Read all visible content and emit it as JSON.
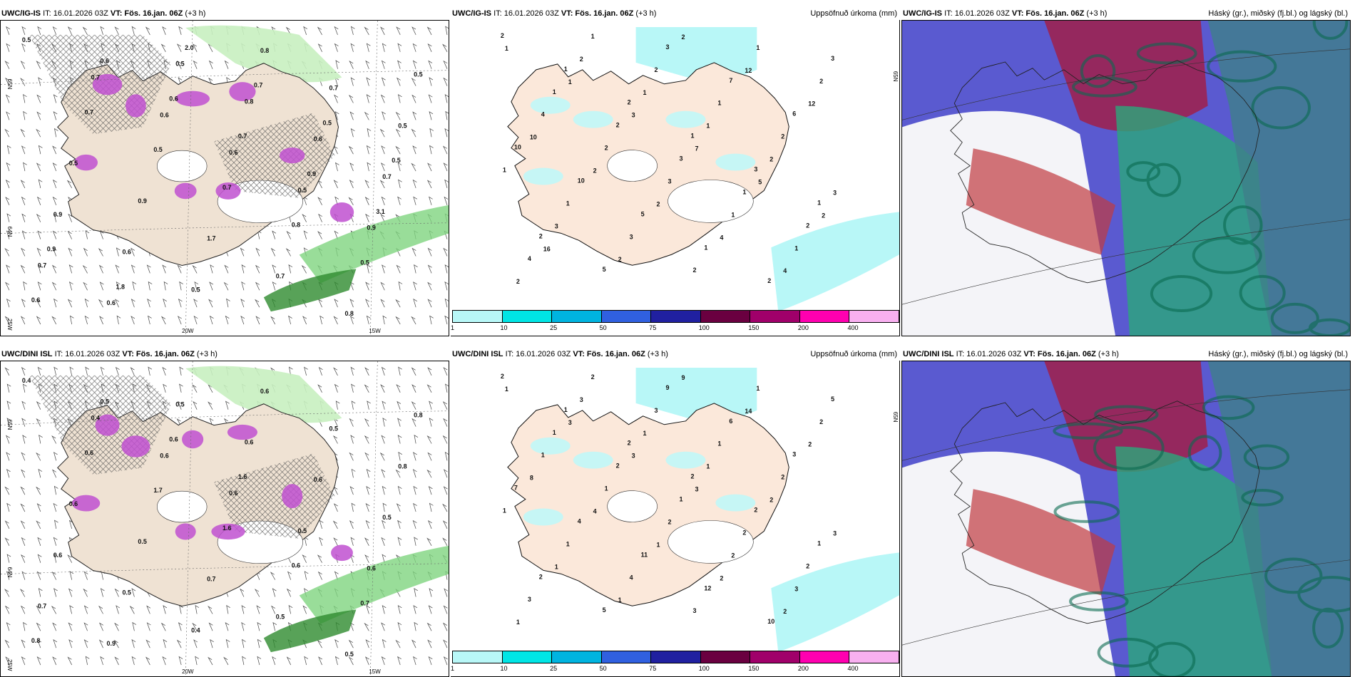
{
  "panels": [
    {
      "model": "UWC/IG-IS",
      "it": "IT: 16.01.2026 03Z",
      "vt": "VT: Fös. 16.jan. 06Z",
      "step": "(+3 h)",
      "right": "",
      "lon_labels": [
        "20W",
        "15W"
      ],
      "lat_labels": [
        "65N",
        "64N",
        "25W"
      ],
      "right_lat": "",
      "values": [
        "0.5",
        "0.7",
        "0.6",
        "0.6",
        "0.5",
        "0.9",
        "0.7",
        "0.6",
        "0.5",
        "0.8",
        "0.6",
        "0.7",
        "0.9",
        "0.6",
        "0.5",
        "0.8",
        "0.7",
        "0.5",
        "0.5",
        "0.9",
        "1.7",
        "0.7",
        "0.8",
        "0.5",
        "0.7",
        "0.5",
        "0.7",
        "0.8",
        "0.5",
        "0.6",
        "0.6",
        "0.6",
        "0.7",
        "0.9",
        "3.1",
        "0.9",
        "1.8",
        "2.0",
        "0.7",
        "0.5",
        "0.5"
      ]
    },
    {
      "model": "UWC/IG-IS",
      "it": "IT: 16.01.2026 03Z",
      "vt": "VT: Fös. 16.jan. 06Z",
      "step": "(+3 h)",
      "right": "Uppsöfnuð úrkoma (mm)",
      "lon_labels": [],
      "lat_labels": [
        "65N"
      ],
      "right_lat": "",
      "values": [
        "2",
        "1",
        "2",
        "1",
        "3",
        "1",
        "2",
        "5",
        "3",
        "7",
        "6",
        "10",
        "10",
        "5",
        "1",
        "2",
        "3",
        "1",
        "2",
        "3",
        "1",
        "2",
        "4",
        "1",
        "2",
        "1",
        "2",
        "1",
        "1",
        "3",
        "2",
        "1",
        "2",
        "4",
        "2",
        "3",
        "1",
        "1",
        "2",
        "2",
        "1",
        "1",
        "2",
        "3",
        "3",
        "2",
        "2",
        "12",
        "12",
        "10",
        "2",
        "2",
        "4",
        "4",
        "1",
        "1",
        "3",
        "7",
        "5",
        "2",
        "16"
      ]
    },
    {
      "model": "UWC/IG-IS",
      "it": "IT: 16.01.2026 03Z",
      "vt": "VT: Fös. 16.jan. 06Z",
      "step": "(+3 h)",
      "right": "Háský (gr.), miðský (fj.bl.) og lágský (bl.)",
      "lon_labels": [],
      "lat_labels": [],
      "right_lat": "",
      "values": []
    },
    {
      "model": "UWC/DINI ISL",
      "it": "IT: 16.01.2026 03Z",
      "vt": "VT: Fös. 16.jan. 06Z",
      "step": "(+3 h)",
      "right": "",
      "lon_labels": [
        "20W",
        "15W"
      ],
      "lat_labels": [
        "65N",
        "64N",
        "25W"
      ],
      "right_lat": "",
      "values": [
        "0.4",
        "0.4",
        "0.6",
        "0.6",
        "0.5",
        "0.6",
        "0.7",
        "0.9",
        "0.5",
        "0.6",
        "0.6",
        "0.5",
        "0.6",
        "0.5",
        "0.4",
        "0.6",
        "0.5",
        "0.8",
        "0.6",
        "0.5",
        "0.7",
        "0.5",
        "0.5",
        "0.8",
        "0.6",
        "1.7",
        "1.6",
        "0.6",
        "0.7",
        "0.8",
        "0.5",
        "0.6",
        "1.6"
      ]
    },
    {
      "model": "UWC/DINI ISL",
      "it": "IT: 16.01.2026 03Z",
      "vt": "VT: Fös. 16.jan. 06Z",
      "step": "(+3 h)",
      "right": "Uppsöfnuð úrkoma (mm)",
      "lon_labels": [],
      "lat_labels": [
        "65N"
      ],
      "right_lat": "",
      "values": [
        "2",
        "1",
        "2",
        "2",
        "2",
        "1",
        "2",
        "5",
        "9",
        "6",
        "3",
        "7",
        "4",
        "11",
        "12",
        "10",
        "5",
        "1",
        "2",
        "1",
        "2",
        "2",
        "3",
        "2",
        "3",
        "1",
        "2",
        "1",
        "1",
        "4",
        "3",
        "1",
        "2",
        "1",
        "1",
        "2",
        "2",
        "3",
        "1",
        "3",
        "1",
        "1",
        "2",
        "3",
        "1",
        "1",
        "9",
        "14",
        "2",
        "8",
        "4",
        "1",
        "2",
        "2",
        "1",
        "3",
        "3",
        "3"
      ]
    },
    {
      "model": "UWC/DINI ISL",
      "it": "IT: 16.01.2026 03Z",
      "vt": "VT: Fös. 16.jan. 06Z",
      "step": "(+3 h)",
      "right": "Háský (gr.), miðský (fj.bl.) og lágský (bl.)",
      "lon_labels": [],
      "lat_labels": [],
      "right_lat": "",
      "values": []
    }
  ],
  "colorbar": {
    "ticks": [
      "1",
      "10",
      "25",
      "50",
      "75",
      "100",
      "150",
      "200",
      "400"
    ],
    "colors": [
      "#b8f7f7",
      "#00e5e5",
      "#00b4e0",
      "#3060e0",
      "#2020a0",
      "#6a0040",
      "#a0006a",
      "#ff00b0",
      "#f8b0f0"
    ]
  }
}
